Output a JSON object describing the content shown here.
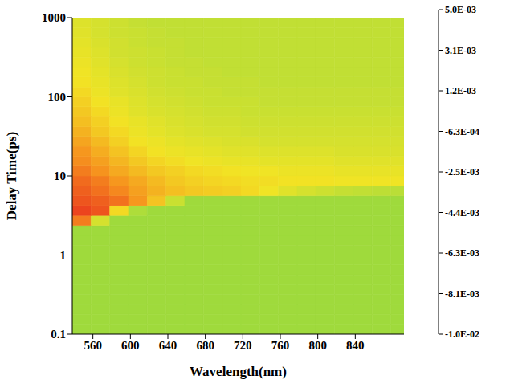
{
  "chart_data": {
    "type": "heatmap",
    "x_label": "Wavelength(nm)",
    "y_label": "Delay Time(ps)",
    "log": "y",
    "xlim": [
      538,
      892
    ],
    "xticks": [
      560,
      600,
      640,
      680,
      720,
      760,
      800,
      840
    ],
    "ylim": [
      0.1,
      1000
    ],
    "yticks": [
      0.1,
      1,
      10,
      100,
      1000
    ],
    "x_bins": [
      538,
      558,
      578,
      598,
      618,
      638,
      658,
      678,
      698,
      718,
      738,
      758,
      778,
      798,
      818,
      838,
      858,
      878,
      892
    ],
    "y_bins": [
      0.1,
      0.1334,
      0.1778,
      0.2371,
      0.3162,
      0.4217,
      0.5623,
      0.7499,
      1,
      1.334,
      1.778,
      2.371,
      3.162,
      4.217,
      5.623,
      7.499,
      10,
      13.34,
      17.78,
      23.71,
      31.62,
      42.17,
      56.23,
      74.99,
      100,
      133.4,
      177.8,
      237.1,
      316.2,
      421.7,
      562.3,
      749.9,
      1000
    ],
    "z": [
      [
        -0.0008,
        -0.0008,
        -0.0008,
        -0.0008,
        -0.0008,
        -0.0008,
        -0.0008,
        -0.0008,
        -0.0008,
        -0.0008,
        -0.0008,
        -0.0008,
        -0.0008,
        -0.0008,
        -0.0008,
        -0.0008,
        -0.0008,
        -0.0008
      ],
      [
        -0.0008,
        -0.0008,
        -0.0008,
        -0.0008,
        -0.0008,
        -0.0008,
        -0.0008,
        -0.0008,
        -0.0008,
        -0.0008,
        -0.0008,
        -0.0008,
        -0.0008,
        -0.0008,
        -0.0008,
        -0.0008,
        -0.0008,
        -0.0008
      ],
      [
        -0.0008,
        -0.0008,
        -0.0008,
        -0.0008,
        -0.0008,
        -0.0008,
        -0.0008,
        -0.0008,
        -0.0008,
        -0.0008,
        -0.0008,
        -0.0008,
        -0.0008,
        -0.0008,
        -0.0008,
        -0.0008,
        -0.0008,
        -0.0008
      ],
      [
        -0.0008,
        -0.0008,
        -0.0008,
        -0.0008,
        -0.0008,
        -0.0008,
        -0.0008,
        -0.0008,
        -0.0008,
        -0.0008,
        -0.0008,
        -0.0008,
        -0.0008,
        -0.0008,
        -0.0008,
        -0.0008,
        -0.0008,
        -0.0008
      ],
      [
        -0.0008,
        -0.0008,
        -0.0008,
        -0.0008,
        -0.0008,
        -0.0008,
        -0.0008,
        -0.0008,
        -0.0008,
        -0.0008,
        -0.0008,
        -0.0008,
        -0.0008,
        -0.0008,
        -0.0008,
        -0.0008,
        -0.0008,
        -0.0008
      ],
      [
        -0.0008,
        -0.0008,
        -0.0008,
        -0.0008,
        -0.0008,
        -0.0008,
        -0.0008,
        -0.0008,
        -0.0008,
        -0.0008,
        -0.0008,
        -0.0008,
        -0.0008,
        -0.0008,
        -0.0008,
        -0.0008,
        -0.0008,
        -0.0008
      ],
      [
        -0.0008,
        -0.0008,
        -0.0008,
        -0.0008,
        -0.0008,
        -0.0008,
        -0.0008,
        -0.0008,
        -0.0008,
        -0.0008,
        -0.0008,
        -0.0008,
        -0.0008,
        -0.0008,
        -0.0008,
        -0.0008,
        -0.0008,
        -0.0008
      ],
      [
        -0.0008,
        -0.0008,
        -0.0008,
        -0.0008,
        -0.0008,
        -0.0008,
        -0.0008,
        -0.0008,
        -0.0008,
        -0.0008,
        -0.0008,
        -0.0008,
        -0.0008,
        -0.0008,
        -0.0008,
        -0.0008,
        -0.0008,
        -0.0008
      ],
      [
        -0.0008,
        -0.0008,
        -0.0008,
        -0.0008,
        -0.0008,
        -0.0008,
        -0.0008,
        -0.0008,
        -0.0008,
        -0.0008,
        -0.0008,
        -0.0008,
        -0.0008,
        -0.0008,
        -0.0008,
        -0.0008,
        -0.0008,
        -0.0008
      ],
      [
        -0.0008,
        -0.0008,
        -0.0008,
        -0.0008,
        -0.0008,
        -0.0008,
        -0.0008,
        -0.0008,
        -0.0008,
        -0.0008,
        -0.0008,
        -0.0008,
        -0.0008,
        -0.0008,
        -0.0008,
        -0.0008,
        -0.0008,
        -0.0008
      ],
      [
        -0.0008,
        -0.0008,
        -0.0008,
        -0.0008,
        -0.0008,
        -0.0008,
        -0.0008,
        -0.0008,
        -0.0008,
        -0.0008,
        -0.0008,
        -0.0008,
        -0.0008,
        -0.0008,
        -0.0008,
        -0.0008,
        -0.0008,
        -0.0008
      ],
      [
        0.0035,
        0.0005,
        -0.0008,
        -0.0008,
        -0.0008,
        -0.0008,
        -0.0008,
        -0.0008,
        -0.0008,
        -0.0008,
        -0.0008,
        -0.0008,
        -0.0008,
        -0.0008,
        -0.0008,
        -0.0008,
        -0.0008,
        -0.0008
      ],
      [
        0.0045,
        0.0042,
        0.0015,
        -0.0005,
        -0.0008,
        -0.0008,
        -0.0008,
        -0.0008,
        -0.0008,
        -0.0008,
        -0.0008,
        -0.0008,
        -0.0008,
        -0.0008,
        -0.0008,
        -0.0008,
        -0.0008,
        -0.0008
      ],
      [
        0.0042,
        0.004,
        0.0037,
        0.003,
        0.002,
        0.0002,
        -0.0008,
        -0.0008,
        -0.0008,
        -0.0008,
        -0.0008,
        -0.0008,
        -0.0008,
        -0.0008,
        -0.0008,
        -0.0008,
        -0.0008,
        -0.0008
      ],
      [
        0.004,
        0.0037,
        0.0033,
        0.0028,
        0.0024,
        0.0021,
        0.0019,
        0.0018,
        0.0017,
        0.0015,
        0.0012,
        0.0008,
        0.0005,
        0.0003,
        0.0001,
        0,
        -0.0001,
        -0.0002
      ],
      [
        0.0038,
        0.0035,
        0.003,
        0.0026,
        0.0022,
        0.0019,
        0.0017,
        0.0016,
        0.0015,
        0.0014,
        0.0014,
        0.0013,
        0.0013,
        0.0013,
        0.0012,
        0.0012,
        0.0012,
        0.0012
      ],
      [
        0.0035,
        0.0031,
        0.0026,
        0.0022,
        0.0019,
        0.0017,
        0.0015,
        0.0014,
        0.0013,
        0.0012,
        0.0012,
        0.0011,
        0.0011,
        0.0011,
        0.001,
        0.001,
        0.001,
        0.001
      ],
      [
        0.0032,
        0.0028,
        0.0023,
        0.0019,
        0.0016,
        0.0014,
        0.0012,
        0.0011,
        0.001,
        0.001,
        0.0009,
        0.0009,
        0.0009,
        0.0009,
        0.0008,
        0.0008,
        0.0008,
        0.0008
      ],
      [
        0.003,
        0.0025,
        0.002,
        0.0016,
        0.0013,
        0.0011,
        0.001,
        0.0009,
        0.0008,
        0.0008,
        0.0007,
        0.0007,
        0.0007,
        0.0007,
        0.0006,
        0.0006,
        0.0006,
        0.0006
      ],
      [
        0.0027,
        0.0022,
        0.0017,
        0.0013,
        0.0011,
        0.0009,
        0.0008,
        0.0007,
        0.0006,
        0.0006,
        0.0005,
        0.0005,
        0.0005,
        0.0005,
        0.0005,
        0.0005,
        0.0005,
        0.0005
      ],
      [
        0.0024,
        0.0019,
        0.0015,
        0.0011,
        0.0009,
        0.0007,
        0.0006,
        0.0005,
        0.0005,
        0.0004,
        0.0004,
        0.0004,
        0.0004,
        0.0004,
        0.0004,
        0.0004,
        0.0004,
        0.0004
      ],
      [
        0.0021,
        0.0017,
        0.0013,
        0.001,
        0.0008,
        0.0006,
        0.0005,
        0.0004,
        0.0004,
        0.0003,
        0.0003,
        0.0003,
        0.0003,
        0.0003,
        0.0003,
        0.0003,
        0.0003,
        0.0003
      ],
      [
        0.0019,
        0.0015,
        0.0011,
        0.0008,
        0.0006,
        0.0005,
        0.0004,
        0.0003,
        0.0003,
        0.0002,
        0.0002,
        0.0002,
        0.0002,
        0.0002,
        0.0002,
        0.0002,
        0.0002,
        0.0002
      ],
      [
        0.0017,
        0.0013,
        0.001,
        0.0007,
        0.0005,
        0.0004,
        0.0003,
        0.0002,
        0.0002,
        0.0002,
        0.0001,
        0.0001,
        0.0001,
        0.0001,
        0.0001,
        0.0001,
        0.0001,
        0.0001
      ],
      [
        0.0015,
        0.0011,
        0.0008,
        0.0006,
        0.0004,
        0.0003,
        0.0002,
        0.0002,
        0.0001,
        0.0001,
        0.0001,
        0.0001,
        0.0001,
        0.0001,
        0.0001,
        0.0001,
        0.0001,
        0.0001
      ],
      [
        0.0013,
        0.001,
        0.0007,
        0.0005,
        0.0003,
        0.0002,
        0.0002,
        0.0001,
        0.0001,
        0.0001,
        0,
        0,
        0,
        0,
        0,
        0,
        0,
        0
      ],
      [
        0.0012,
        0.0009,
        0.0006,
        0.0004,
        0.0003,
        0.0002,
        0.0001,
        0.0001,
        0,
        0,
        0,
        0,
        0,
        0,
        0,
        0,
        0,
        0
      ],
      [
        0.0011,
        0.0008,
        0.0005,
        0.0003,
        0.0002,
        0.0001,
        0.0001,
        0,
        0,
        0,
        0,
        0,
        0,
        0,
        0,
        0,
        0,
        0
      ],
      [
        0.001,
        0.0007,
        0.0004,
        0.0003,
        0.0002,
        0.0001,
        0,
        0,
        0,
        0,
        0,
        0,
        0,
        0,
        0,
        0,
        0,
        0
      ],
      [
        0.0009,
        0.0006,
        0.0004,
        0.0002,
        0.0001,
        0.0001,
        0,
        0,
        0,
        0,
        0,
        0,
        0,
        0,
        0,
        0,
        0,
        0
      ],
      [
        0.0008,
        0.0005,
        0.0003,
        0.0002,
        0.0001,
        0,
        0,
        0,
        0,
        0,
        0,
        0,
        0,
        0,
        0,
        0,
        0,
        0
      ],
      [
        0.0007,
        0.0005,
        0.0003,
        0.0001,
        0,
        0,
        0,
        0,
        0,
        0,
        0,
        0,
        0,
        0,
        0,
        0,
        0,
        0
      ]
    ],
    "colorbar_range": [
      -0.01,
      0.005
    ],
    "colorbar_ticks": [
      {
        "value": 0.005,
        "label": "5.0E-03"
      },
      {
        "value": 0.003125,
        "label": "3.1E-03"
      },
      {
        "value": 0.00125,
        "label": "1.2E-03"
      },
      {
        "value": -0.000625,
        "label": "-6.3E-04"
      },
      {
        "value": -0.0025,
        "label": "-2.5E-03"
      },
      {
        "value": -0.004375,
        "label": "-4.4E-03"
      },
      {
        "value": -0.00625,
        "label": "-6.3E-03"
      },
      {
        "value": -0.008125,
        "label": "-8.1E-03"
      },
      {
        "value": -0.01,
        "label": "-1.0E-02"
      }
    ]
  }
}
